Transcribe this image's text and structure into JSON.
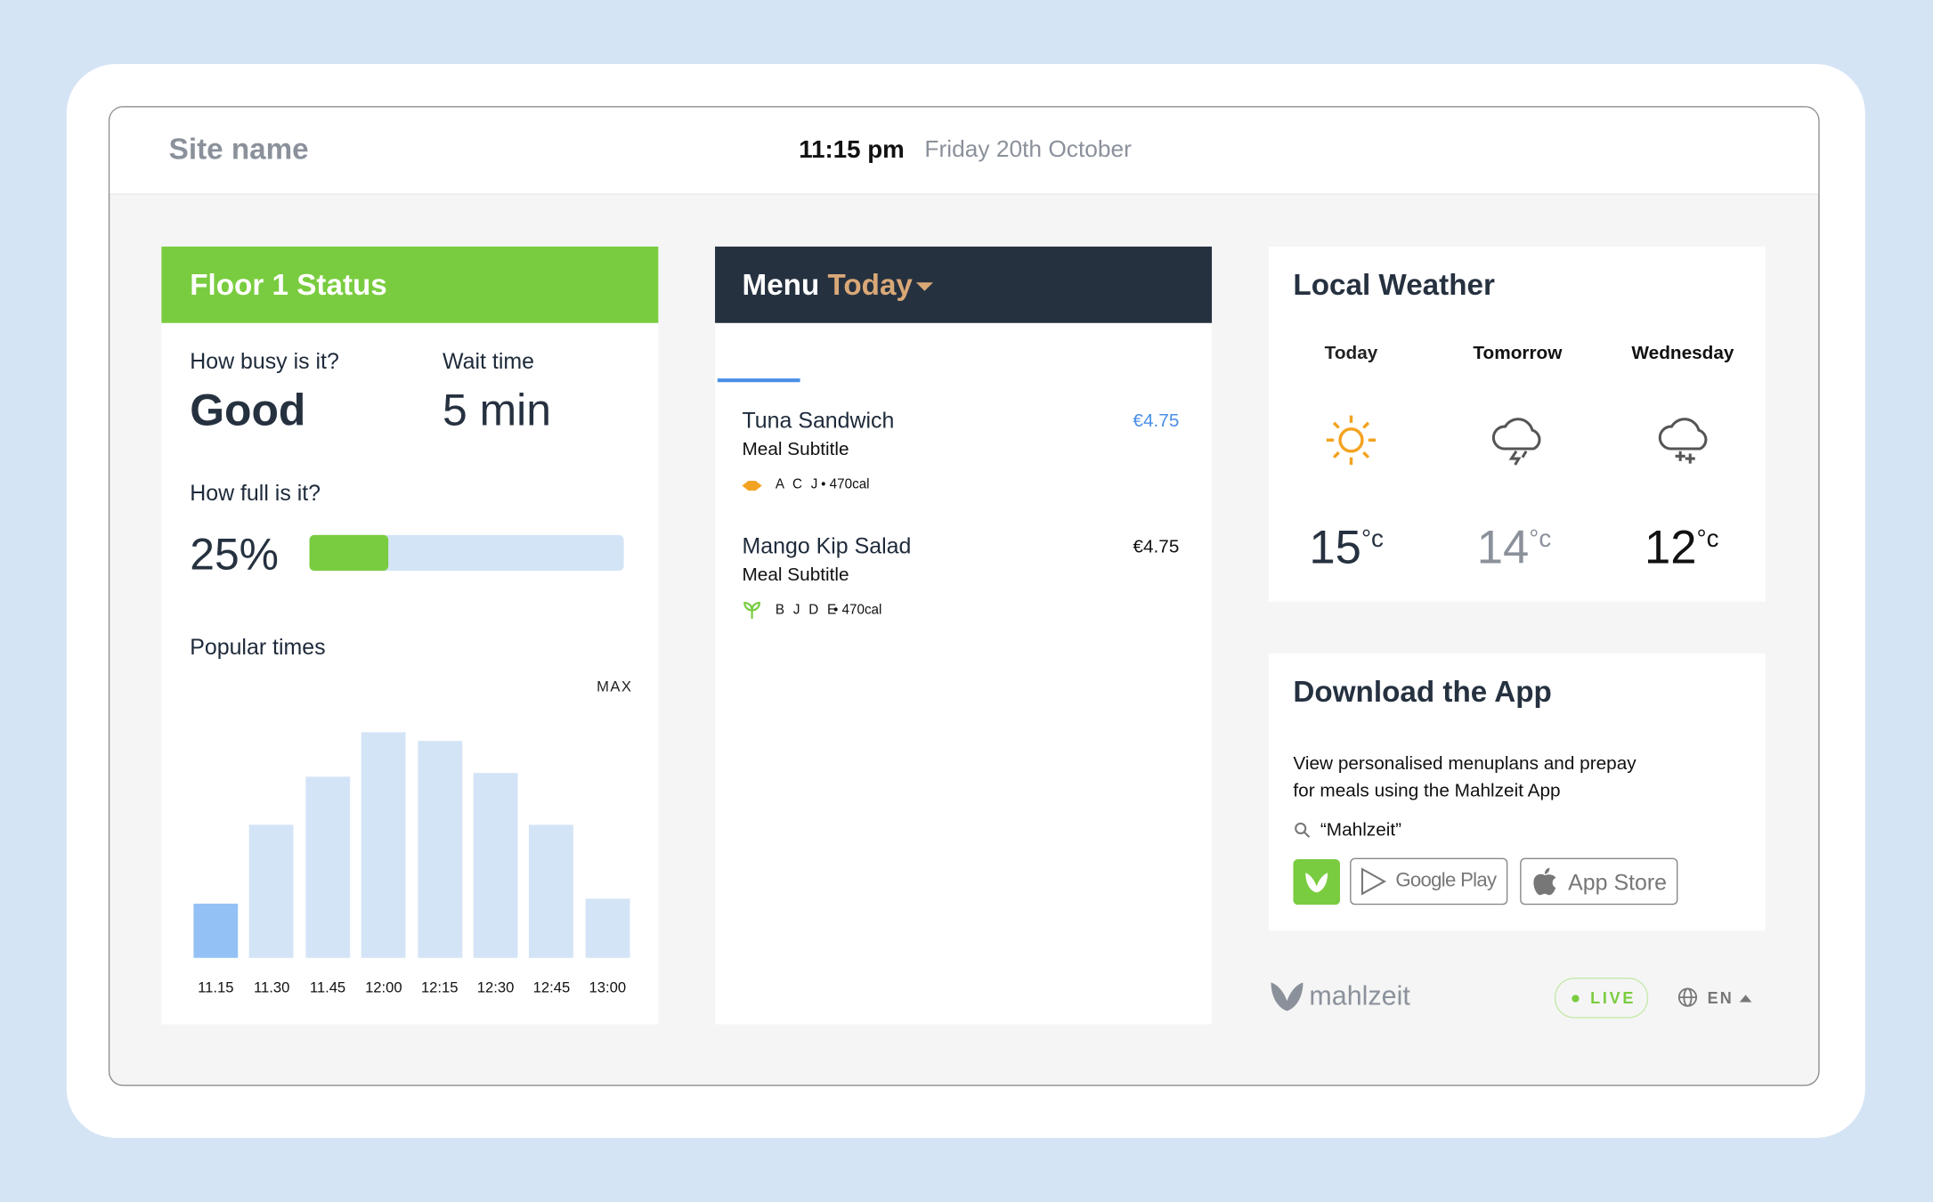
{
  "header": {
    "site_name": "Site name",
    "time": "11:15 pm",
    "date": "Friday 20th October"
  },
  "status": {
    "title": "Floor 1 Status",
    "busy_label": "How busy is it?",
    "busy_value": "Good",
    "wait_label": "Wait time",
    "wait_value": "5 min",
    "full_label": "How full is it?",
    "fullness": {
      "value": 25,
      "label": "25%"
    },
    "popular_label": "Popular times",
    "max_label": "MAX",
    "popular_times": {
      "type": "bar",
      "categories": [
        "11.15",
        "11.30",
        "11.45",
        "12:00",
        "12:15",
        "12:30",
        "12:45",
        "13:00"
      ],
      "values": [
        20,
        49,
        67,
        83,
        80,
        68,
        49,
        22
      ],
      "ylim": [
        0,
        100
      ],
      "color": "#d4e4f7",
      "highlight_color": "#94c1f5",
      "highlight_index": 0
    }
  },
  "menu": {
    "title": "Menu",
    "filter": "Today",
    "items": [
      {
        "name": "Tuna Sandwich",
        "subtitle": "Meal Subtitle",
        "price": "€4.75",
        "allergens": "A C J",
        "calories": "• 470cal"
      },
      {
        "name": "Mango Kip Salad",
        "subtitle": "Meal Subtitle",
        "price": "€4.75",
        "allergens": "B J D E",
        "calories": "• 470cal"
      }
    ]
  },
  "weather": {
    "title": "Local Weather",
    "unit": "°c",
    "days": [
      {
        "day": "Today",
        "temp": "15"
      },
      {
        "day": "Tomorrow",
        "temp": "14"
      },
      {
        "day": "Wednesday",
        "temp": "12"
      }
    ]
  },
  "app": {
    "title": "Download the App",
    "description": [
      "View personalised menuplans and prepay",
      "for meals using the Mahlzeit App"
    ],
    "search": "“Mahlzeit”",
    "google": "Google Play",
    "apple": "App Store"
  },
  "footer": {
    "brand": "mahlzeit",
    "status": "LIVE",
    "language": "EN"
  }
}
